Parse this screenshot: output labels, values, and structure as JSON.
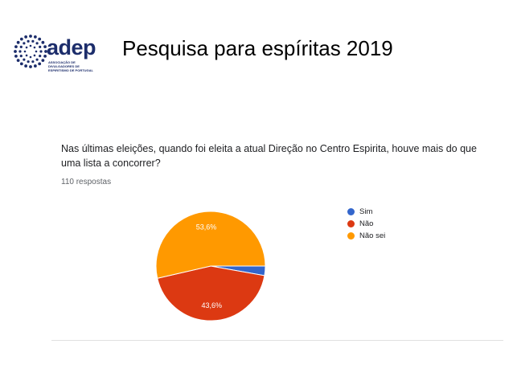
{
  "header": {
    "logo_text": "adep",
    "logo_subtitle": "ASSOCIAÇÃO DE DIVULGADORES DE ESPIRITISMO DE PORTUGAL",
    "title": "Pesquisa para espíritas  2019"
  },
  "form": {
    "question": "Nas últimas eleições, quando foi eleita a atual Direção no Centro Espirita, houve mais do que uma lista a concorrer?",
    "responses": "110 respostas"
  },
  "colors": {
    "brand": "#1c2d6b",
    "sim": "#3366cc",
    "nao": "#dc3912",
    "nao_sei": "#ff9900"
  },
  "chart_data": {
    "type": "pie",
    "title": "",
    "slices": [
      {
        "label": "Sim",
        "value": 2.8,
        "color": "#3366cc",
        "data_label": ""
      },
      {
        "label": "Não",
        "value": 43.6,
        "color": "#dc3912",
        "data_label": "43,6%"
      },
      {
        "label": "Não sei",
        "value": 53.6,
        "color": "#ff9900",
        "data_label": "53,6%"
      }
    ],
    "legend": [
      "Sim",
      "Não",
      "Não sei"
    ],
    "legend_position": "right"
  }
}
